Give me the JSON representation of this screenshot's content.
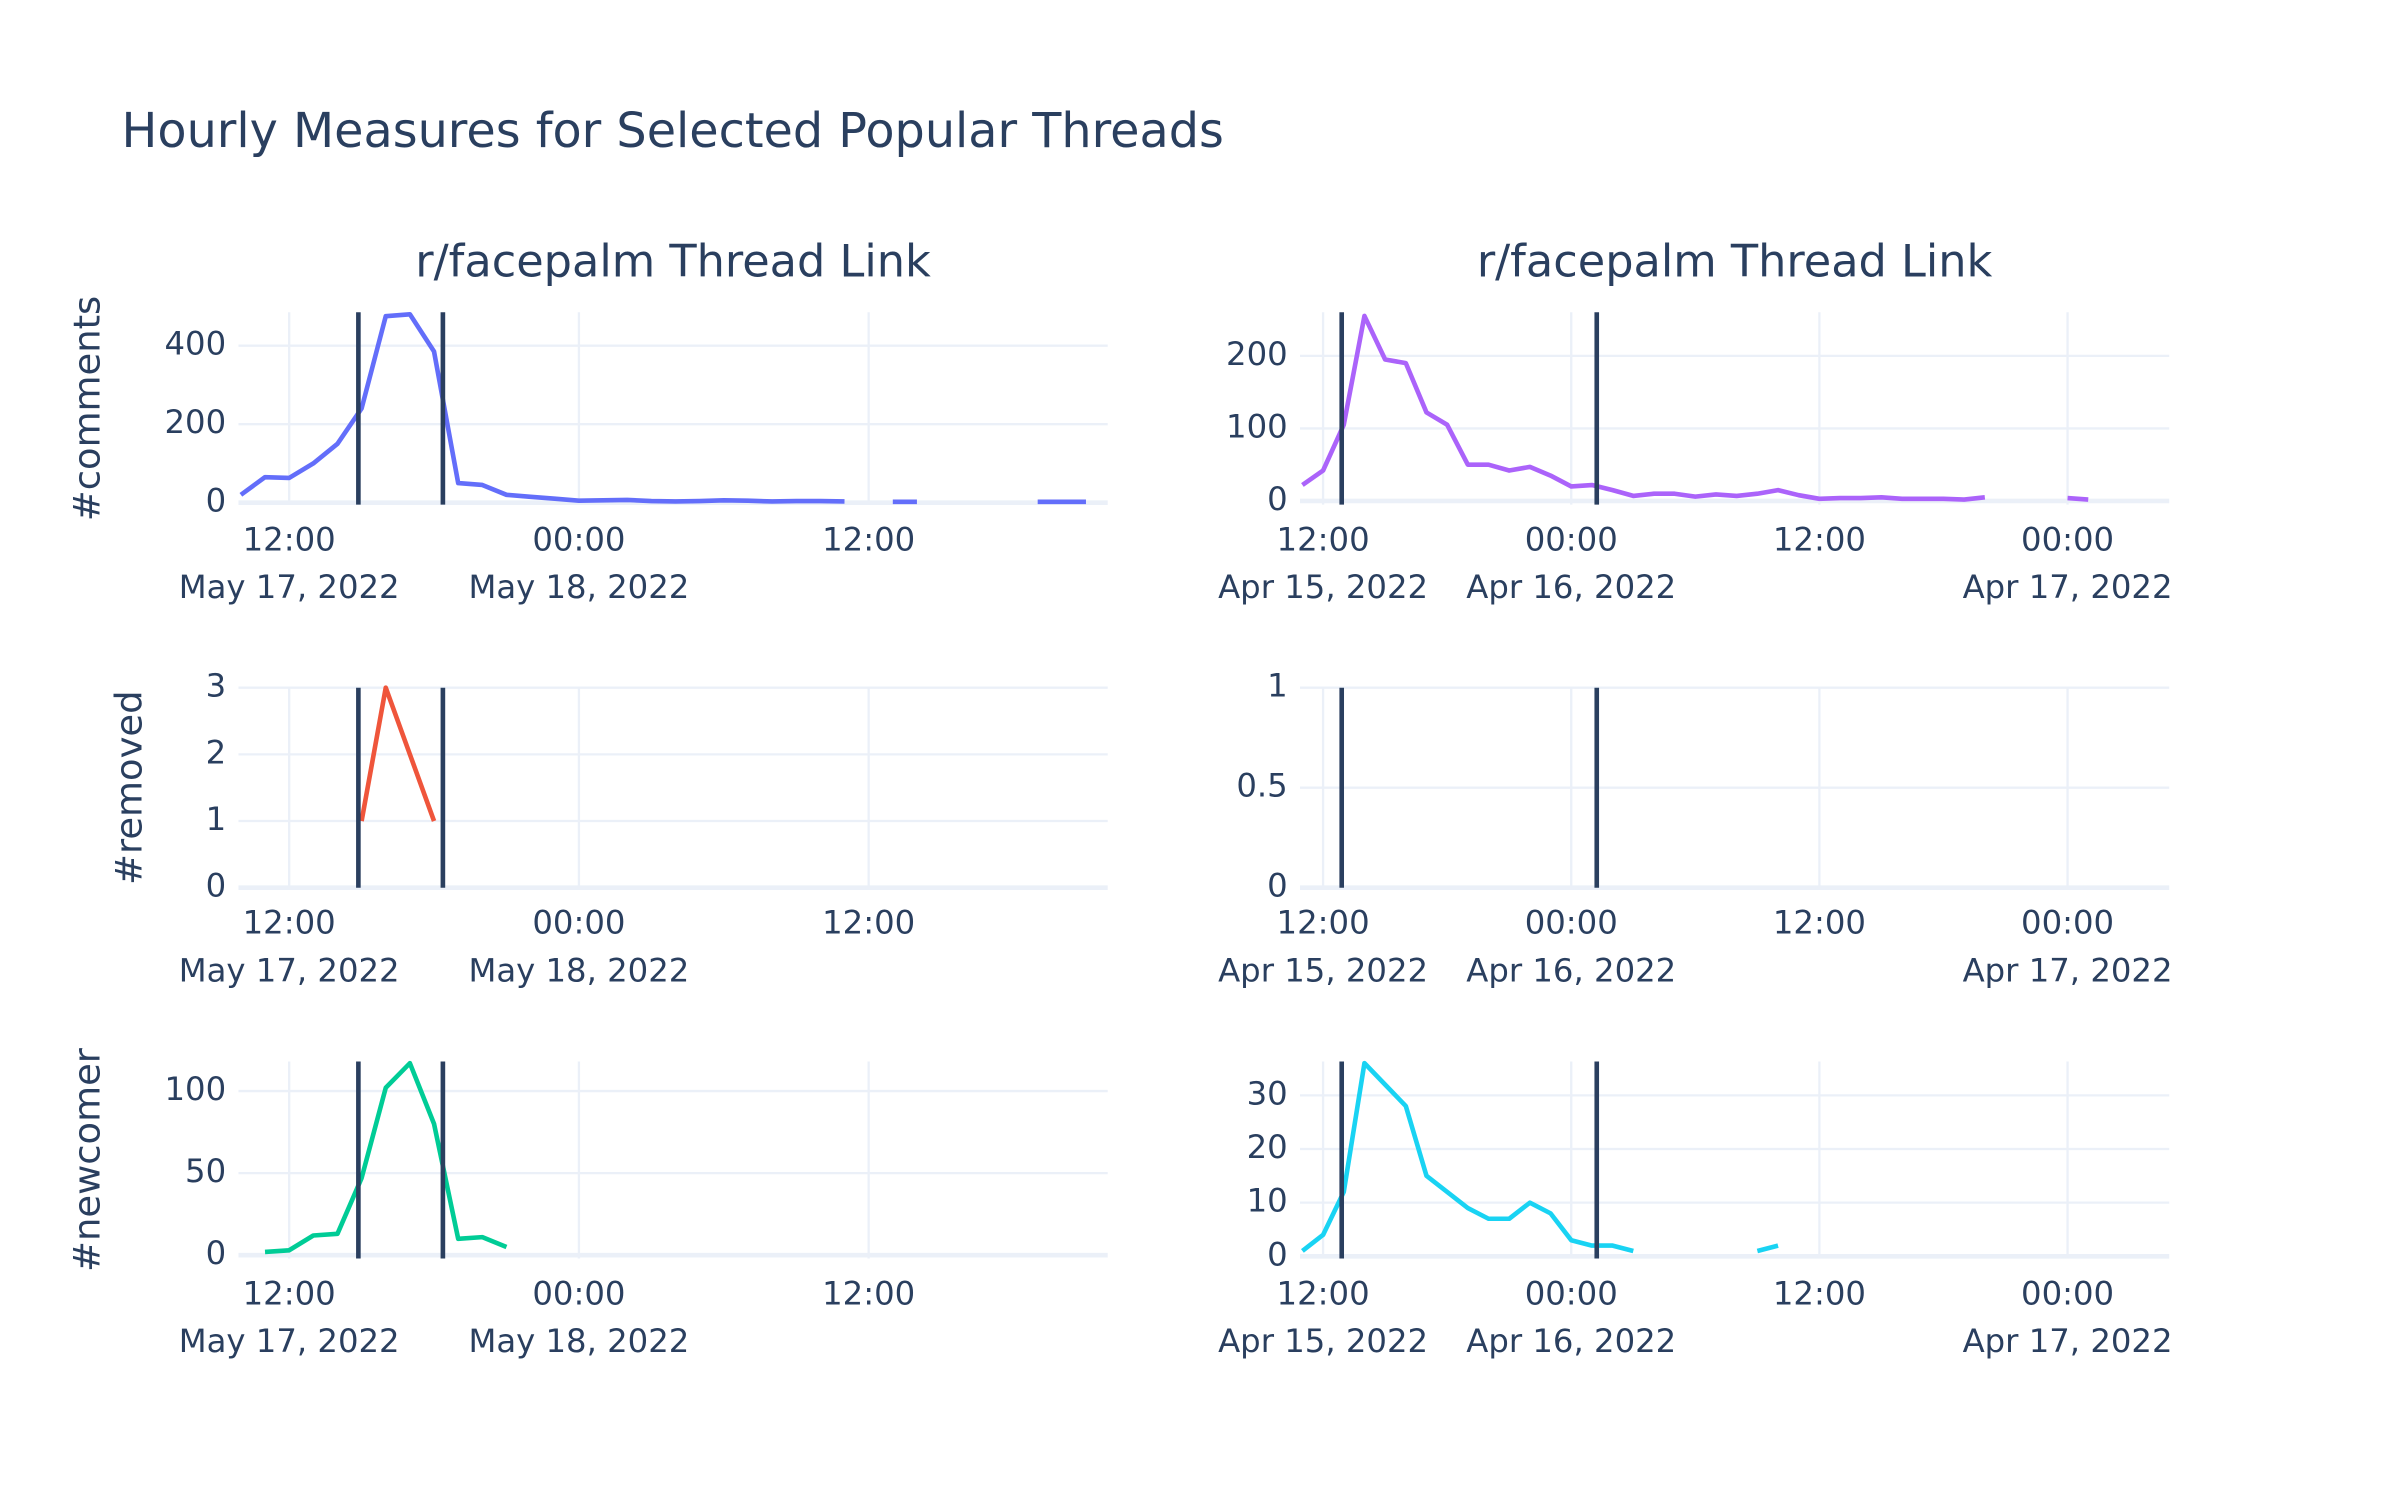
{
  "title": "Hourly Measures for Selected Popular Threads",
  "chart_data": [
    {
      "type": "line",
      "title": "r/facepalm Thread Link",
      "ylabel": "#comments",
      "x": [
        "2022-05-17 10:00",
        "2022-05-17 11:00",
        "2022-05-17 12:00",
        "2022-05-17 13:00",
        "2022-05-17 14:00",
        "2022-05-17 15:00",
        "2022-05-17 16:00",
        "2022-05-17 17:00",
        "2022-05-17 18:00",
        "2022-05-17 19:00",
        "2022-05-17 20:00",
        "2022-05-17 21:00",
        "2022-05-17 22:00",
        "2022-05-17 23:00",
        "2022-05-18 00:00",
        "2022-05-18 01:00",
        "2022-05-18 02:00",
        "2022-05-18 03:00",
        "2022-05-18 04:00",
        "2022-05-18 05:00",
        "2022-05-18 06:00",
        "2022-05-18 07:00",
        "2022-05-18 08:00",
        "2022-05-18 09:00",
        "2022-05-18 10:00",
        "2022-05-18 11:00",
        "2022-05-18 12:00",
        "2022-05-18 13:00",
        "2022-05-18 14:00",
        "2022-05-18 15:00",
        "2022-05-18 16:00",
        "2022-05-18 17:00",
        "2022-05-18 18:00",
        "2022-05-18 19:00",
        "2022-05-18 20:00",
        "2022-05-18 21:00"
      ],
      "series": [
        {
          "name": "#comments",
          "color": "#636efa",
          "values": [
            20,
            65,
            63,
            100,
            150,
            240,
            475,
            480,
            385,
            50,
            45,
            20,
            15,
            10,
            5,
            6,
            7,
            4,
            3,
            4,
            6,
            5,
            3,
            4,
            4,
            3,
            null,
            2,
            2,
            null,
            null,
            null,
            null,
            2,
            2,
            2
          ]
        }
      ],
      "xlim": [
        "2022-05-17 09:54",
        "2022-05-18 21:54"
      ],
      "xticks": [
        {
          "value": "2022-05-17 12:00",
          "label": "12:00"
        },
        {
          "value": "2022-05-18 00:00",
          "label": "00:00"
        },
        {
          "value": "2022-05-18 12:00",
          "label": "12:00"
        }
      ],
      "xtick_dates": [
        {
          "value": "2022-05-17 12:00",
          "label": "May 17, 2022"
        },
        {
          "value": "2022-05-18 00:00",
          "label": "May 18, 2022"
        }
      ],
      "ylim": [
        -5,
        485
      ],
      "yticks": [
        0,
        200,
        400
      ],
      "vlines": [
        "2022-05-17 14:52",
        "2022-05-17 18:22"
      ],
      "vline_color": "#2a3f5f",
      "grid": true
    },
    {
      "type": "line",
      "title": "r/facepalm Thread Link",
      "x": [
        "2022-04-15 11:00",
        "2022-04-15 12:00",
        "2022-04-15 13:00",
        "2022-04-15 14:00",
        "2022-04-15 15:00",
        "2022-04-15 16:00",
        "2022-04-15 17:00",
        "2022-04-15 18:00",
        "2022-04-15 19:00",
        "2022-04-15 20:00",
        "2022-04-15 21:00",
        "2022-04-15 22:00",
        "2022-04-15 23:00",
        "2022-04-16 00:00",
        "2022-04-16 01:00",
        "2022-04-16 02:00",
        "2022-04-16 03:00",
        "2022-04-16 04:00",
        "2022-04-16 05:00",
        "2022-04-16 06:00",
        "2022-04-16 07:00",
        "2022-04-16 08:00",
        "2022-04-16 09:00",
        "2022-04-16 10:00",
        "2022-04-16 11:00",
        "2022-04-16 12:00",
        "2022-04-16 13:00",
        "2022-04-16 14:00",
        "2022-04-16 15:00",
        "2022-04-16 16:00",
        "2022-04-16 17:00",
        "2022-04-16 18:00",
        "2022-04-16 19:00",
        "2022-04-16 20:00",
        "2022-04-16 21:00",
        "2022-04-16 22:00",
        "2022-04-16 23:00",
        "2022-04-17 00:00",
        "2022-04-17 01:00"
      ],
      "series": [
        {
          "name": "#comments",
          "color": "#ab63fa",
          "values": [
            22,
            42,
            105,
            255,
            195,
            190,
            122,
            105,
            50,
            50,
            42,
            47,
            35,
            20,
            22,
            15,
            7,
            10,
            10,
            6,
            9,
            7,
            10,
            15,
            8,
            3,
            4,
            4,
            5,
            3,
            3,
            3,
            2,
            5,
            null,
            null,
            null,
            4,
            2
          ]
        }
      ],
      "xlim": [
        "2022-04-15 10:53",
        "2022-04-17 04:55"
      ],
      "xticks": [
        {
          "value": "2022-04-15 12:00",
          "label": "12:00"
        },
        {
          "value": "2022-04-16 00:00",
          "label": "00:00"
        },
        {
          "value": "2022-04-16 12:00",
          "label": "12:00"
        },
        {
          "value": "2022-04-17 00:00",
          "label": "00:00"
        }
      ],
      "xtick_dates": [
        {
          "value": "2022-04-15 12:00",
          "label": "Apr 15, 2022"
        },
        {
          "value": "2022-04-16 00:00",
          "label": "Apr 16, 2022"
        },
        {
          "value": "2022-04-17 00:00",
          "label": "Apr 17, 2022"
        }
      ],
      "ylim": [
        -5,
        260
      ],
      "yticks": [
        0,
        100,
        200
      ],
      "vlines": [
        "2022-04-15 12:54",
        "2022-04-16 01:14"
      ],
      "vline_color": "#2a3f5f",
      "grid": true
    },
    {
      "type": "line",
      "ylabel": "#removed",
      "x": [
        "2022-05-17 10:00",
        "2022-05-17 11:00",
        "2022-05-17 12:00",
        "2022-05-17 13:00",
        "2022-05-17 14:00",
        "2022-05-17 15:00",
        "2022-05-17 16:00",
        "2022-05-17 17:00",
        "2022-05-17 18:00",
        "2022-05-17 19:00",
        "2022-05-17 20:00",
        "2022-05-17 21:00",
        "2022-05-17 22:00",
        "2022-05-17 23:00",
        "2022-05-18 00:00",
        "2022-05-18 01:00",
        "2022-05-18 02:00",
        "2022-05-18 03:00",
        "2022-05-18 04:00",
        "2022-05-18 05:00",
        "2022-05-18 06:00",
        "2022-05-18 07:00",
        "2022-05-18 08:00",
        "2022-05-18 09:00",
        "2022-05-18 10:00",
        "2022-05-18 11:00",
        "2022-05-18 12:00",
        "2022-05-18 13:00",
        "2022-05-18 14:00",
        "2022-05-18 15:00",
        "2022-05-18 16:00",
        "2022-05-18 17:00",
        "2022-05-18 18:00",
        "2022-05-18 19:00",
        "2022-05-18 20:00",
        "2022-05-18 21:00"
      ],
      "series": [
        {
          "name": "#removed",
          "color": "#ef553b",
          "values": [
            null,
            null,
            null,
            null,
            null,
            1,
            3,
            2,
            1,
            null,
            null,
            null,
            null,
            null,
            null,
            null,
            null,
            null,
            null,
            null,
            null,
            null,
            null,
            null,
            null,
            null,
            null,
            null,
            null,
            null,
            null,
            null,
            null,
            null,
            null,
            null
          ]
        }
      ],
      "xlim": [
        "2022-05-17 09:54",
        "2022-05-18 21:54"
      ],
      "xticks": [
        {
          "value": "2022-05-17 12:00",
          "label": "12:00"
        },
        {
          "value": "2022-05-18 00:00",
          "label": "00:00"
        },
        {
          "value": "2022-05-18 12:00",
          "label": "12:00"
        }
      ],
      "xtick_dates": [
        {
          "value": "2022-05-17 12:00",
          "label": "May 17, 2022"
        },
        {
          "value": "2022-05-18 00:00",
          "label": "May 18, 2022"
        }
      ],
      "ylim": [
        0,
        3
      ],
      "yticks": [
        0,
        1,
        2,
        3
      ],
      "vlines": [
        "2022-05-17 14:52",
        "2022-05-17 18:22"
      ],
      "vline_color": "#2a3f5f",
      "grid": true
    },
    {
      "type": "line",
      "x": [],
      "series": [],
      "xlim": [
        "2022-04-15 10:53",
        "2022-04-17 04:55"
      ],
      "xticks": [
        {
          "value": "2022-04-15 12:00",
          "label": "12:00"
        },
        {
          "value": "2022-04-16 00:00",
          "label": "00:00"
        },
        {
          "value": "2022-04-16 12:00",
          "label": "12:00"
        },
        {
          "value": "2022-04-17 00:00",
          "label": "00:00"
        }
      ],
      "xtick_dates": [
        {
          "value": "2022-04-15 12:00",
          "label": "Apr 15, 2022"
        },
        {
          "value": "2022-04-16 00:00",
          "label": "Apr 16, 2022"
        },
        {
          "value": "2022-04-17 00:00",
          "label": "Apr 17, 2022"
        }
      ],
      "ylim": [
        0,
        1
      ],
      "yticks": [
        0,
        0.5,
        1
      ],
      "vlines": [
        "2022-04-15 12:54",
        "2022-04-16 01:14"
      ],
      "vline_color": "#2a3f5f",
      "grid": true
    },
    {
      "type": "line",
      "ylabel": "#newcomer",
      "x": [
        "2022-05-17 10:00",
        "2022-05-17 11:00",
        "2022-05-17 12:00",
        "2022-05-17 13:00",
        "2022-05-17 14:00",
        "2022-05-17 15:00",
        "2022-05-17 16:00",
        "2022-05-17 17:00",
        "2022-05-17 18:00",
        "2022-05-17 19:00",
        "2022-05-17 20:00",
        "2022-05-17 21:00",
        "2022-05-17 22:00",
        "2022-05-17 23:00",
        "2022-05-18 00:00",
        "2022-05-18 01:00",
        "2022-05-18 02:00",
        "2022-05-18 03:00",
        "2022-05-18 04:00",
        "2022-05-18 05:00",
        "2022-05-18 06:00",
        "2022-05-18 07:00",
        "2022-05-18 08:00",
        "2022-05-18 09:00",
        "2022-05-18 10:00",
        "2022-05-18 11:00",
        "2022-05-18 12:00",
        "2022-05-18 13:00",
        "2022-05-18 14:00",
        "2022-05-18 15:00",
        "2022-05-18 16:00",
        "2022-05-18 17:00",
        "2022-05-18 18:00",
        "2022-05-18 19:00",
        "2022-05-18 20:00",
        "2022-05-18 21:00"
      ],
      "series": [
        {
          "name": "#newcomer",
          "color": "#00cc96",
          "values": [
            null,
            2,
            3,
            12,
            13,
            47,
            102,
            117,
            80,
            10,
            11,
            5,
            null,
            null,
            null,
            null,
            null,
            null,
            null,
            null,
            null,
            null,
            null,
            null,
            null,
            null,
            null,
            null,
            null,
            null,
            null,
            null,
            null,
            null,
            null,
            null
          ]
        }
      ],
      "xlim": [
        "2022-05-17 09:54",
        "2022-05-18 21:54"
      ],
      "xticks": [
        {
          "value": "2022-05-17 12:00",
          "label": "12:00"
        },
        {
          "value": "2022-05-18 00:00",
          "label": "00:00"
        },
        {
          "value": "2022-05-18 12:00",
          "label": "12:00"
        }
      ],
      "xtick_dates": [
        {
          "value": "2022-05-17 12:00",
          "label": "May 17, 2022"
        },
        {
          "value": "2022-05-18 00:00",
          "label": "May 18, 2022"
        }
      ],
      "ylim": [
        -2,
        118
      ],
      "yticks": [
        0,
        50,
        100
      ],
      "vlines": [
        "2022-05-17 14:52",
        "2022-05-17 18:22"
      ],
      "vline_color": "#2a3f5f",
      "grid": true
    },
    {
      "type": "line",
      "x": [
        "2022-04-15 11:00",
        "2022-04-15 12:00",
        "2022-04-15 13:00",
        "2022-04-15 14:00",
        "2022-04-15 15:00",
        "2022-04-15 16:00",
        "2022-04-15 17:00",
        "2022-04-15 18:00",
        "2022-04-15 19:00",
        "2022-04-15 20:00",
        "2022-04-15 21:00",
        "2022-04-15 22:00",
        "2022-04-15 23:00",
        "2022-04-16 00:00",
        "2022-04-16 01:00",
        "2022-04-16 02:00",
        "2022-04-16 03:00",
        "2022-04-16 04:00",
        "2022-04-16 05:00",
        "2022-04-16 06:00",
        "2022-04-16 07:00",
        "2022-04-16 08:00",
        "2022-04-16 09:00",
        "2022-04-16 10:00"
      ],
      "series": [
        {
          "name": "#newcomer",
          "color": "#19d3f3",
          "values": [
            1,
            4,
            12,
            36,
            32,
            28,
            15,
            12,
            9,
            7,
            7,
            10,
            8,
            3,
            2,
            2,
            1,
            null,
            null,
            null,
            null,
            null,
            1,
            2
          ]
        }
      ],
      "xlim": [
        "2022-04-15 10:53",
        "2022-04-17 04:55"
      ],
      "xticks": [
        {
          "value": "2022-04-15 12:00",
          "label": "12:00"
        },
        {
          "value": "2022-04-16 00:00",
          "label": "00:00"
        },
        {
          "value": "2022-04-16 12:00",
          "label": "12:00"
        },
        {
          "value": "2022-04-17 00:00",
          "label": "00:00"
        }
      ],
      "xtick_dates": [
        {
          "value": "2022-04-15 12:00",
          "label": "Apr 15, 2022"
        },
        {
          "value": "2022-04-16 00:00",
          "label": "Apr 16, 2022"
        },
        {
          "value": "2022-04-17 00:00",
          "label": "Apr 17, 2022"
        }
      ],
      "ylim": [
        -0.4,
        36.3
      ],
      "yticks": [
        0,
        10,
        20,
        30
      ],
      "vlines": [
        "2022-04-15 12:54",
        "2022-04-16 01:14"
      ],
      "vline_color": "#2a3f5f",
      "grid": true
    }
  ]
}
